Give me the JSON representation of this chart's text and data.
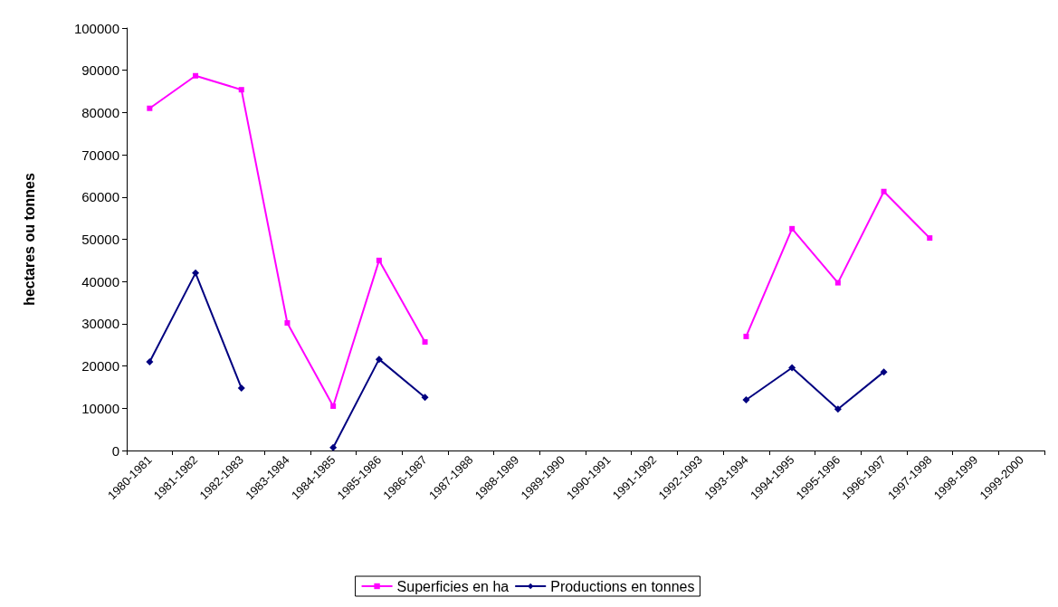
{
  "chart_data": {
    "type": "line",
    "ylabel": "hectares ou tonnes",
    "categories": [
      "1980-1981",
      "1981-1982",
      "1982-1983",
      "1983-1984",
      "1984-1985",
      "1985-1986",
      "1986-1987",
      "1987-1988",
      "1988-1989",
      "1989-1990",
      "1990-1991",
      "1991-1992",
      "1992-1993",
      "1993-1994",
      "1994-1995",
      "1995-1996",
      "1996-1997",
      "1997-1998",
      "1998-1999",
      "1999-2000"
    ],
    "series": [
      {
        "name": "Superficies en ha",
        "color": "#ff00ff",
        "marker": "square",
        "values": [
          81000,
          88700,
          85400,
          30200,
          10500,
          45000,
          25700,
          null,
          null,
          null,
          null,
          null,
          null,
          27000,
          52500,
          39700,
          61300,
          50300,
          null,
          null
        ]
      },
      {
        "name": "Productions en tonnes",
        "color": "#000080",
        "marker": "diamond",
        "values": [
          21000,
          42000,
          14800,
          null,
          700,
          21600,
          12600,
          null,
          null,
          null,
          null,
          null,
          null,
          12000,
          19600,
          9800,
          18600,
          null,
          null,
          null
        ]
      }
    ],
    "ylim": [
      0,
      100000
    ],
    "yticks": [
      0,
      10000,
      20000,
      30000,
      40000,
      50000,
      60000,
      70000,
      80000,
      90000,
      100000
    ],
    "grid": false,
    "legend": "bottom",
    "line_style": "solid"
  }
}
